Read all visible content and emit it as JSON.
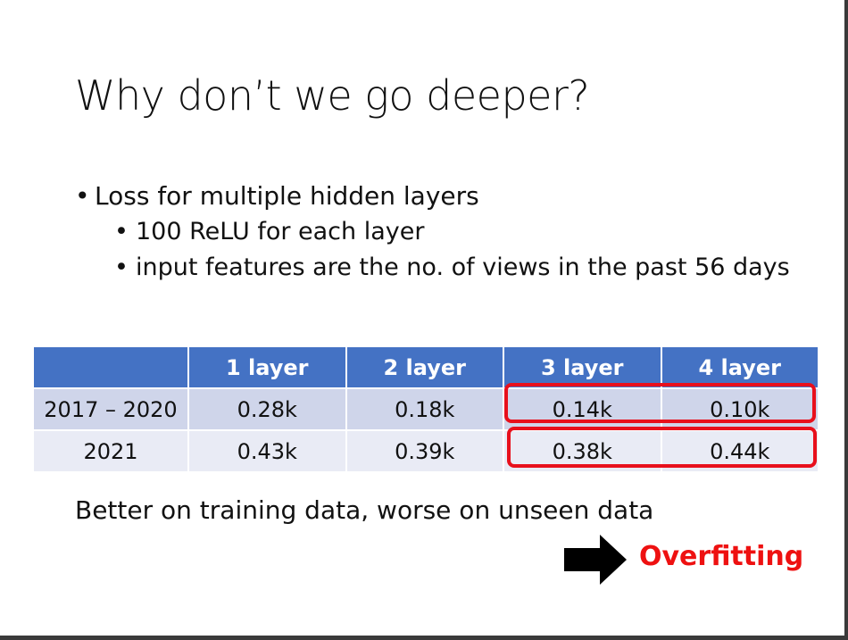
{
  "slide": {
    "title": "Why don’t we go deeper?",
    "bullets": [
      {
        "text": "Loss for multiple hidden layers",
        "sub": [
          {
            "text": "100 ReLU for each layer"
          },
          {
            "text": "input features are the no. of views in the past 56 days"
          }
        ]
      }
    ],
    "table": {
      "headers": [
        "",
        "1 layer",
        "2 layer",
        "3 layer",
        "4 layer"
      ],
      "rows": [
        [
          "2017 – 2020",
          "0.28k",
          "0.18k",
          "0.14k",
          "0.10k"
        ],
        [
          "2021",
          "0.43k",
          "0.39k",
          "0.38k",
          "0.44k"
        ]
      ]
    },
    "caption": "Better on training data, worse on unseen data",
    "conclusion": "Overfitting",
    "colors": {
      "header_bg": "#4472c4",
      "row_a_bg": "#cfd5ea",
      "row_b_bg": "#e9ebf5",
      "highlight": "#e8101c",
      "conclusion": "#ee1111"
    },
    "icons": {
      "arrow": "right-arrow-icon"
    }
  }
}
